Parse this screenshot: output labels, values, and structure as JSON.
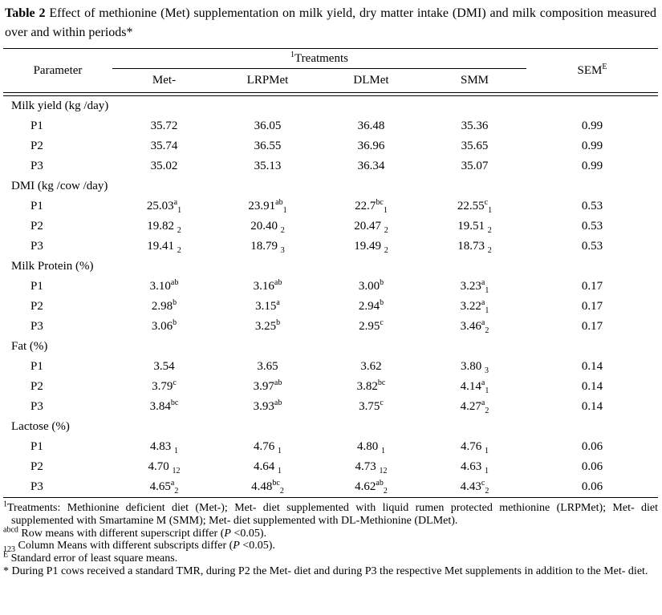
{
  "caption": {
    "label": "Table 2",
    "text": " Effect of methionine (Met) supplementation on milk yield, dry matter intake (DMI) and milk composition measured over and within periods*"
  },
  "table": {
    "header": {
      "parameter": "Parameter",
      "treatments_sup": "1",
      "treatments_label": "Treatments",
      "treatment_cols": [
        "Met-",
        "LRPMet",
        "DLMet",
        "SMM"
      ],
      "sem_label": "SEM",
      "sem_sup": "E"
    },
    "sections": [
      {
        "name": "Milk yield (kg /day)",
        "rows": [
          {
            "param": "P1",
            "cells": [
              "35.72",
              "36.05",
              "36.48",
              "35.36",
              "0.99"
            ]
          },
          {
            "param": "P2",
            "cells": [
              "35.74",
              "36.55",
              "36.96",
              "35.65",
              "0.99"
            ]
          },
          {
            "param": "P3",
            "cells": [
              "35.02",
              "35.13",
              "36.34",
              "35.07",
              "0.99"
            ]
          }
        ]
      },
      {
        "name": "DMI (kg /cow /day)",
        "rows": [
          {
            "param": "P1",
            "cells": [
              "25.03^a_1",
              "23.91^ab_1",
              "22.7^bc_1",
              "22.55^c_1",
              "0.53"
            ]
          },
          {
            "param": "P2",
            "cells": [
              "19.82 _2",
              "20.40 _2",
              "20.47 _2",
              "19.51 _2",
              "0.53"
            ]
          },
          {
            "param": "P3",
            "cells": [
              "19.41 _2",
              "18.79 _3",
              "19.49 _2",
              "18.73 _2",
              "0.53"
            ]
          }
        ]
      },
      {
        "name": "Milk Protein (%)",
        "rows": [
          {
            "param": "P1",
            "cells": [
              "3.10^ab",
              "3.16^ab",
              "3.00^b",
              "3.23^a_1",
              "0.17"
            ]
          },
          {
            "param": "P2",
            "cells": [
              "2.98^b",
              "3.15^a",
              "2.94^b",
              "3.22^a_1",
              "0.17"
            ]
          },
          {
            "param": "P3",
            "cells": [
              "3.06^b",
              "3.25^b",
              "2.95^c",
              "3.46^a_2",
              "0.17"
            ]
          }
        ]
      },
      {
        "name": "Fat (%)",
        "rows": [
          {
            "param": "P1",
            "cells": [
              "3.54",
              "3.65",
              "3.62",
              "3.80 _3",
              "0.14"
            ]
          },
          {
            "param": "P2",
            "cells": [
              "3.79^c",
              "3.97^ab",
              "3.82^bc",
              "4.14^a_1",
              "0.14"
            ]
          },
          {
            "param": "P3",
            "cells": [
              "3.84^bc",
              "3.93^ab",
              "3.75^c",
              "4.27^a_2",
              "0.14"
            ]
          }
        ]
      },
      {
        "name": "Lactose (%)",
        "rows": [
          {
            "param": "P1",
            "cells": [
              "4.83 _1",
              "4.76 _1",
              "4.80 _1",
              "4.76 _1",
              "0.06"
            ]
          },
          {
            "param": "P2",
            "cells": [
              "4.70 _12",
              "4.64 _1",
              "4.73 _12",
              "4.63 _1",
              "0.06"
            ]
          },
          {
            "param": "P3",
            "cells": [
              "4.65^a_2",
              "4.48^bc_2",
              "4.62^ab_2",
              "4.43^c_2",
              "0.06"
            ]
          }
        ]
      }
    ]
  },
  "footnotes": [
    {
      "marker": "1",
      "type": "sup",
      "text": "Treatments: Methionine deficient diet (Met-); Met- diet supplemented with liquid rumen protected methionine (LRPMet); Met- diet supplemented with Smartamine M (SMM); Met- diet supplemented with DL-Methionine (DLMet)."
    },
    {
      "marker": "abcd",
      "type": "sup",
      "text": " Row means with different superscript differ (P <0.05)."
    },
    {
      "marker": "123",
      "type": "sub",
      "text": " Column Means with different subscripts differ (P <0.05)."
    },
    {
      "marker": "E",
      "type": "sup",
      "text": " Standard error of least square means."
    },
    {
      "marker": "*",
      "type": "plain",
      "text": " During P1 cows received a standard TMR, during P2 the Met- diet and during P3 the respective Met supplements in addition to the Met- diet."
    }
  ]
}
